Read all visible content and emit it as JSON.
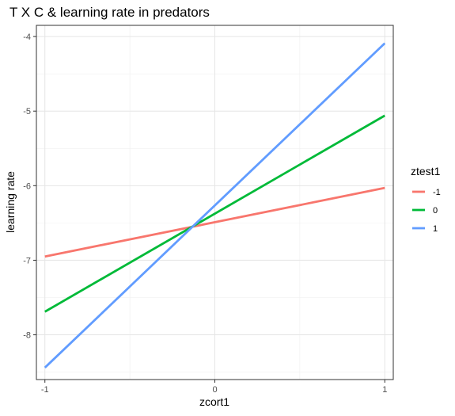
{
  "chart_data": {
    "type": "line",
    "title": "T X C & learning rate in predators",
    "xlabel": "zcort1",
    "ylabel": "learning rate",
    "xlim": [
      -1.05,
      1.05
    ],
    "ylim": [
      -8.6,
      -3.85
    ],
    "xticks": [
      -1,
      0,
      1
    ],
    "xtick_labels": [
      "-1",
      "0",
      "1"
    ],
    "yticks": [
      -8,
      -7,
      -6,
      -5,
      -4
    ],
    "ytick_labels": [
      "-8",
      "-7",
      "-6",
      "-5",
      "-4"
    ],
    "grid": true,
    "legend_position": "right",
    "legend_title": "ztest1",
    "series": [
      {
        "name": "-1",
        "color": "#F8766D",
        "x": [
          -1,
          1
        ],
        "y": [
          -6.95,
          -6.03
        ]
      },
      {
        "name": "0",
        "color": "#00BA38",
        "x": [
          -1,
          1
        ],
        "y": [
          -7.69,
          -5.06
        ]
      },
      {
        "name": "1",
        "color": "#619CFF",
        "x": [
          -1,
          1
        ],
        "y": [
          -8.44,
          -4.09
        ]
      }
    ]
  }
}
